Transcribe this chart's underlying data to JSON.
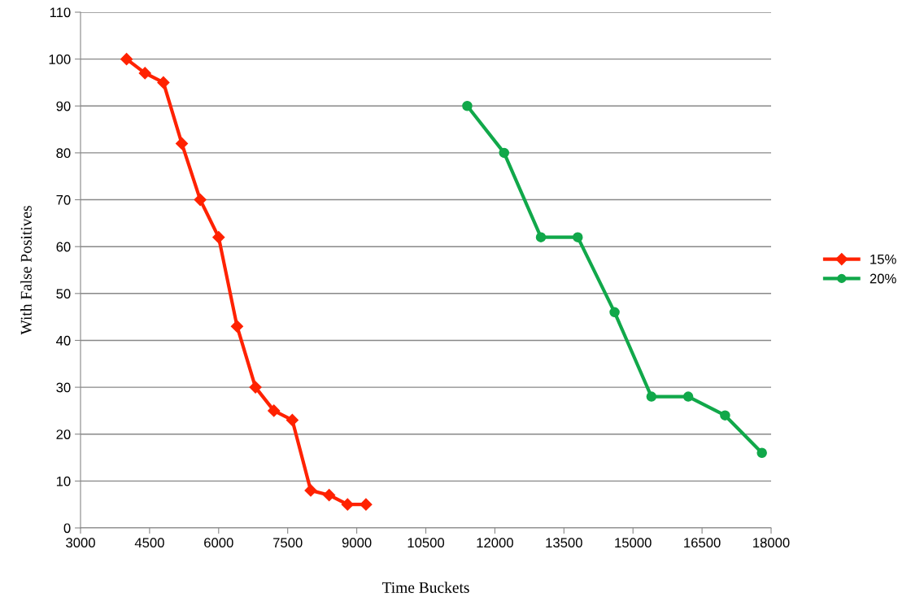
{
  "chart_data": {
    "type": "line",
    "xlabel": "Time Buckets",
    "ylabel": "With False Positives",
    "series": [
      {
        "name": "15%",
        "color": "#ff2200",
        "marker": "diamond",
        "x": [
          4000,
          4400,
          4800,
          5200,
          5600,
          6000,
          6400,
          6800,
          7200,
          7600,
          8000,
          8400,
          8800,
          9200
        ],
        "values": [
          100,
          97,
          95,
          82,
          70,
          62,
          43,
          30,
          25,
          23,
          8,
          7,
          5,
          5
        ]
      },
      {
        "name": "20%",
        "color": "#11a84a",
        "marker": "circle",
        "x": [
          11400,
          12200,
          13000,
          13800,
          14600,
          15400,
          16200,
          17000,
          17800
        ],
        "values": [
          90,
          80,
          62,
          62,
          46,
          28,
          28,
          24,
          16
        ]
      }
    ],
    "xlim": [
      3000,
      18000
    ],
    "xticks": [
      3000,
      4500,
      6000,
      7500,
      9000,
      10500,
      12000,
      13500,
      15000,
      16500,
      18000
    ],
    "ylim": [
      0,
      110
    ],
    "yticks": [
      0,
      10,
      20,
      30,
      40,
      50,
      60,
      70,
      80,
      90,
      100,
      110
    ],
    "grid": "y",
    "legend": "right",
    "line_style": "solid"
  }
}
